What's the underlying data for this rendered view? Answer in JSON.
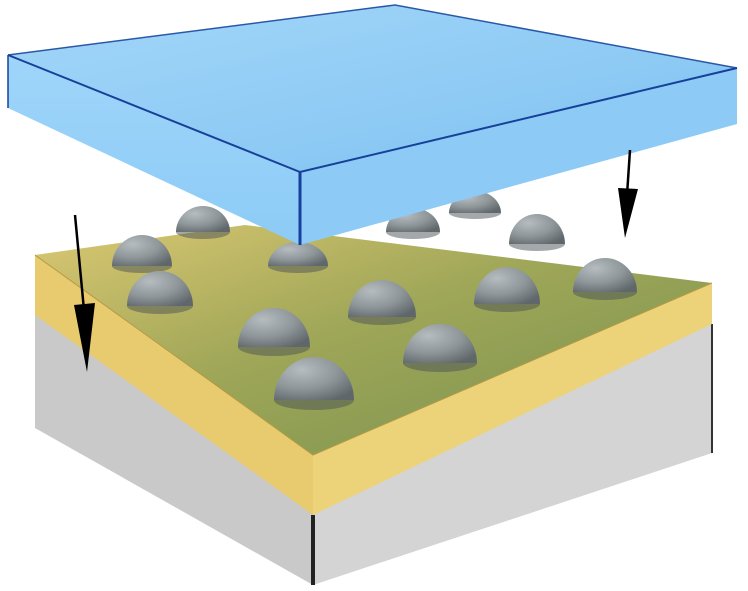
{
  "diagram": {
    "title": "",
    "layers": [
      {
        "name": "top-plate",
        "color": "#8fcdf7"
      },
      {
        "name": "film-layer",
        "color": "#e9cf72"
      },
      {
        "name": "substrate",
        "color": "#d3d3d3"
      }
    ],
    "bumps": {
      "count": 14,
      "color": "#8e9699"
    },
    "arrows": {
      "count": 2,
      "direction": "down",
      "color": "#000000"
    }
  }
}
